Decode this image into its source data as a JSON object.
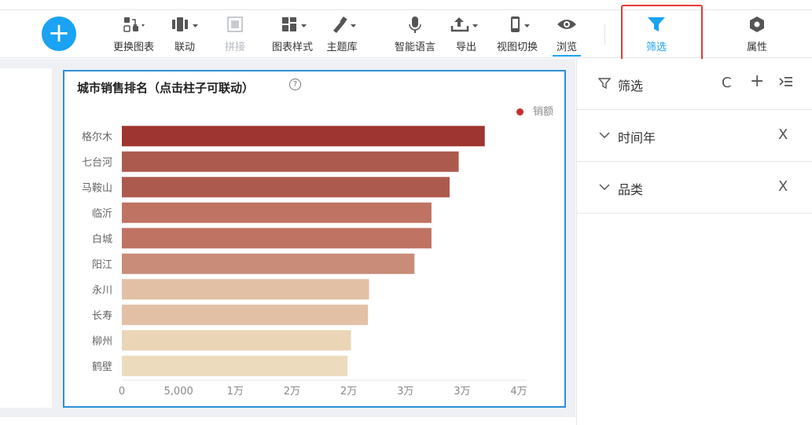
{
  "toolbar": {
    "add_button_label": "+",
    "items": [
      {
        "label": "更换图表",
        "icon": "chart-swap-icon"
      },
      {
        "label": "联动",
        "icon": "link-icon"
      },
      {
        "label": "拼接",
        "icon": "stitch-icon"
      },
      {
        "label": "图表样式",
        "icon": "chart-style-icon"
      },
      {
        "label": "主题库",
        "icon": "theme-brush-icon"
      },
      {
        "label": "智能语言",
        "icon": "microphone-icon"
      },
      {
        "label": "导出",
        "icon": "export-icon"
      },
      {
        "label": "视图切换",
        "icon": "phone-view-icon"
      },
      {
        "label": "浏览",
        "icon": "eye-icon"
      },
      {
        "label": "筛选",
        "icon": "funnel-icon"
      },
      {
        "label": "属性",
        "icon": "hex-settings-icon"
      }
    ],
    "accent_color": "#1aa3f2",
    "highlight_color": "#e53935"
  },
  "widget": {
    "title": "城市销售排名（点击柱子可联动）",
    "help_icon": "?",
    "legend_label": "销额"
  },
  "chart_data": {
    "type": "bar",
    "orientation": "horizontal",
    "categories": [
      "格尔木",
      "七台河",
      "马鞍山",
      "临沂",
      "白城",
      "阳江",
      "永川",
      "长寿",
      "柳州",
      "鹤壁"
    ],
    "series": [
      {
        "name": "销额",
        "values": [
          32000,
          29700,
          28900,
          27300,
          27300,
          25800,
          21800,
          21700,
          20200,
          19900
        ]
      }
    ],
    "colors": [
      "#9e3530",
      "#ad5a4e",
      "#ad5a4e",
      "#bf7362",
      "#bf7362",
      "#c98c79",
      "#e2c0a5",
      "#e2c0a5",
      "#ebd5b7",
      "#ecdcbd"
    ],
    "xlim": [
      0,
      35000
    ],
    "x_ticks": [
      "0",
      "5,000",
      "1万",
      "2万",
      "2万",
      "3万",
      "3万",
      "4万"
    ],
    "xlabel": "",
    "ylabel": ""
  },
  "filter_panel": {
    "title": "筛选",
    "refresh_icon": "C",
    "add_icon": "+",
    "filters": [
      {
        "label": "时间年",
        "close": "X"
      },
      {
        "label": "品类",
        "close": "X"
      }
    ]
  }
}
